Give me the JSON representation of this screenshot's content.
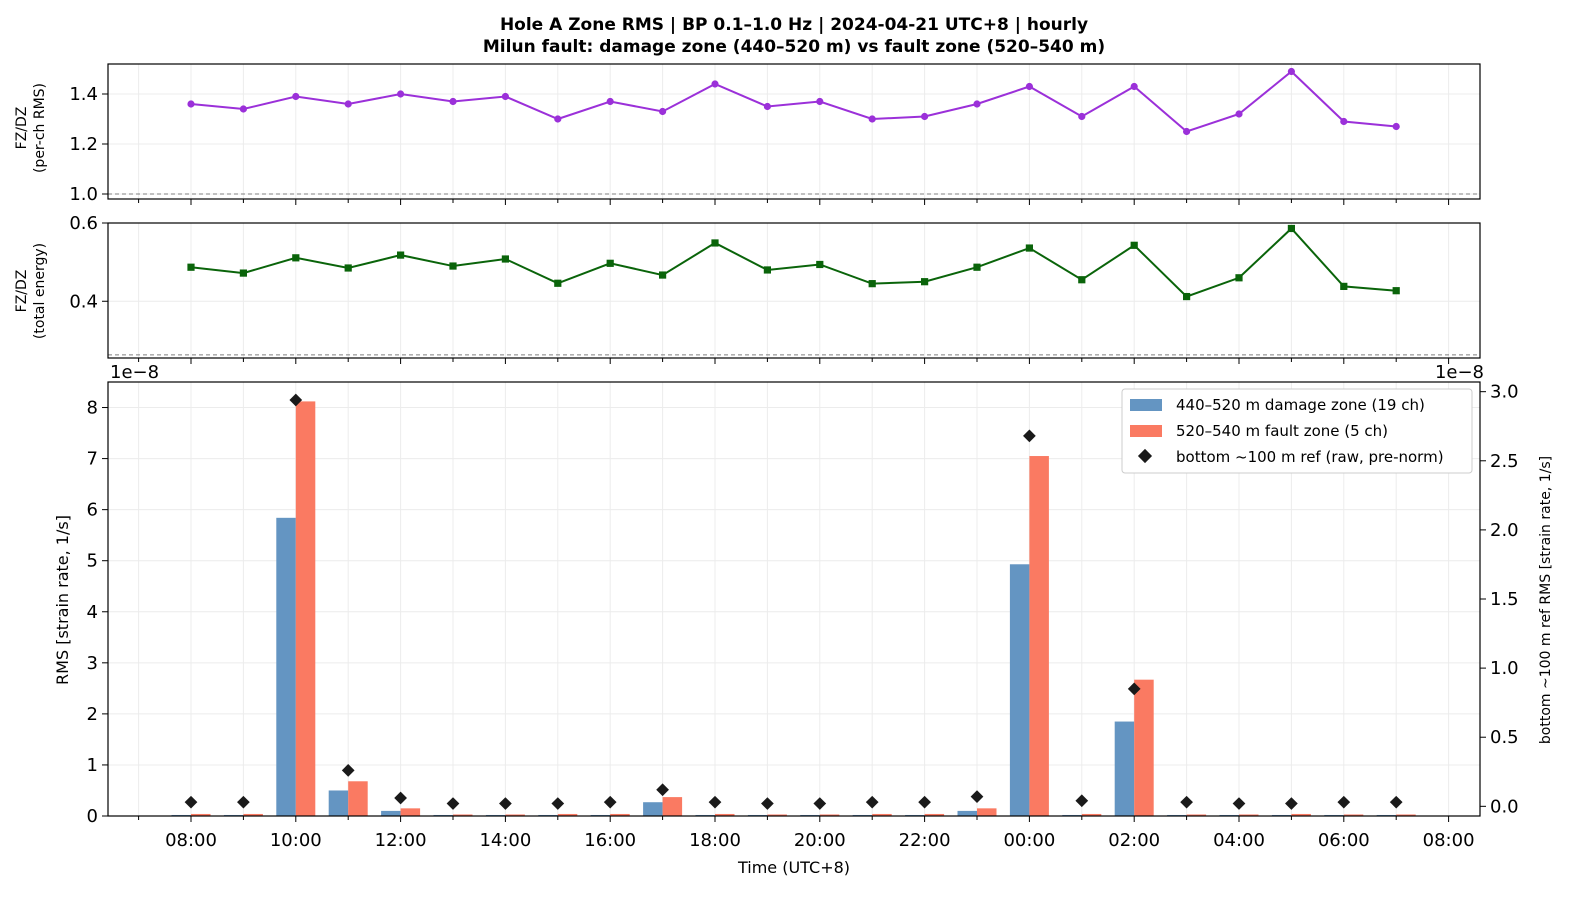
{
  "chart_data": {
    "type": "bar",
    "title_line1": "Hole A Zone RMS  |  BP 0.1–1.0 Hz  |  2024-04-21 UTC+8  |  hourly",
    "title_line2": "Milun fault: damage zone (440–520 m) vs fault zone (520–540 m)",
    "hours": [
      "08:00",
      "09:00",
      "10:00",
      "11:00",
      "12:00",
      "13:00",
      "14:00",
      "15:00",
      "16:00",
      "17:00",
      "18:00",
      "19:00",
      "20:00",
      "21:00",
      "22:00",
      "23:00",
      "00:00",
      "01:00",
      "02:00",
      "03:00",
      "04:00",
      "05:00",
      "06:00",
      "07:00"
    ],
    "x_tick_labels": [
      "08:00",
      "10:00",
      "12:00",
      "14:00",
      "16:00",
      "18:00",
      "20:00",
      "22:00",
      "00:00",
      "02:00",
      "04:00",
      "06:00",
      "08:00"
    ],
    "xlabel": "Time (UTC+8)",
    "panel1": {
      "type": "line",
      "ylabel_line1": "FZ/DZ",
      "ylabel_line2": "(per-ch RMS)",
      "ylim": [
        0.98,
        1.52
      ],
      "yticks": [
        1.0,
        1.2,
        1.4
      ],
      "ytick_labels": [
        "1.0",
        "1.2",
        "1.4"
      ],
      "reference_line": 1.0,
      "color": "#9b30d9",
      "values": [
        1.36,
        1.34,
        1.39,
        1.36,
        1.4,
        1.37,
        1.39,
        1.3,
        1.37,
        1.33,
        1.44,
        1.35,
        1.37,
        1.3,
        1.31,
        1.36,
        1.43,
        1.31,
        1.43,
        1.25,
        1.32,
        1.49,
        1.29,
        1.27
      ]
    },
    "panel2": {
      "type": "line",
      "ylabel_line1": "FZ/DZ",
      "ylabel_line2": "(total energy)",
      "ylim": [
        0.255,
        0.6
      ],
      "yticks": [
        0.4,
        0.6
      ],
      "ytick_labels": [
        "0.4",
        "0.6"
      ],
      "reference_line": 0.263,
      "color": "#0a640a",
      "values": [
        0.487,
        0.472,
        0.511,
        0.485,
        0.518,
        0.49,
        0.508,
        0.446,
        0.497,
        0.467,
        0.549,
        0.48,
        0.494,
        0.445,
        0.45,
        0.487,
        0.536,
        0.455,
        0.543,
        0.412,
        0.46,
        0.586,
        0.438,
        0.427
      ]
    },
    "panel3": {
      "ylabel": "RMS  [strain rate, 1/s]",
      "y2label": "bottom ~100 m ref RMS  [strain rate, 1/s]",
      "ylim": [
        0,
        8.5
      ],
      "yticks": [
        0,
        1,
        2,
        3,
        4,
        5,
        6,
        7,
        8
      ],
      "ytick_labels": [
        "0",
        "1",
        "2",
        "3",
        "4",
        "5",
        "6",
        "7",
        "8"
      ],
      "y2lim": [
        -0.07,
        3.07
      ],
      "y2ticks": [
        0,
        0.5,
        1,
        1.5,
        2,
        2.5,
        3
      ],
      "y2tick_labels": [
        "0.0",
        "0.5",
        "1.0",
        "1.5",
        "2.0",
        "2.5",
        "3.0"
      ],
      "scale_left": "1e−8",
      "scale_right": "1e−8",
      "legend_position": "upper-right",
      "series": [
        {
          "name": "440–520 m  damage zone (19 ch)",
          "color": "#6495c2",
          "values": [
            0.02,
            0.02,
            5.84,
            0.5,
            0.1,
            0.02,
            0.02,
            0.02,
            0.02,
            0.27,
            0.02,
            0.02,
            0.02,
            0.02,
            0.02,
            0.1,
            4.93,
            0.02,
            1.85,
            0.02,
            0.02,
            0.02,
            0.02,
            0.02
          ]
        },
        {
          "name": "520–540 m  fault zone (5 ch)",
          "color": "#fa7a62",
          "values": [
            0.04,
            0.04,
            8.12,
            0.68,
            0.15,
            0.03,
            0.03,
            0.04,
            0.04,
            0.37,
            0.04,
            0.03,
            0.03,
            0.04,
            0.04,
            0.15,
            7.05,
            0.04,
            2.67,
            0.03,
            0.03,
            0.04,
            0.03,
            0.03
          ]
        },
        {
          "name": "bottom ~100 m ref (raw, pre-norm)",
          "color": "#1a1a1a",
          "axis": "right",
          "values": [
            0.03,
            0.03,
            2.94,
            0.26,
            0.06,
            0.02,
            0.02,
            0.02,
            0.03,
            0.12,
            0.03,
            0.02,
            0.02,
            0.03,
            0.03,
            0.07,
            2.68,
            0.04,
            0.85,
            0.03,
            0.02,
            0.02,
            0.03,
            0.03
          ]
        }
      ]
    }
  }
}
